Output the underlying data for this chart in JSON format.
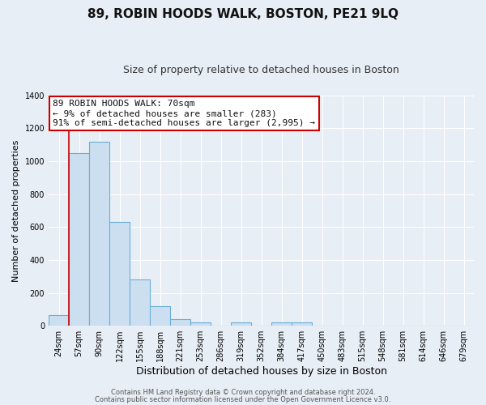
{
  "title": "89, ROBIN HOODS WALK, BOSTON, PE21 9LQ",
  "subtitle": "Size of property relative to detached houses in Boston",
  "xlabel": "Distribution of detached houses by size in Boston",
  "ylabel": "Number of detached properties",
  "bar_labels": [
    "24sqm",
    "57sqm",
    "90sqm",
    "122sqm",
    "155sqm",
    "188sqm",
    "221sqm",
    "253sqm",
    "286sqm",
    "319sqm",
    "352sqm",
    "384sqm",
    "417sqm",
    "450sqm",
    "483sqm",
    "515sqm",
    "548sqm",
    "581sqm",
    "614sqm",
    "646sqm",
    "679sqm"
  ],
  "bar_values": [
    65,
    1050,
    1120,
    630,
    280,
    120,
    40,
    20,
    0,
    20,
    0,
    20,
    20,
    0,
    0,
    0,
    0,
    0,
    0,
    0,
    0
  ],
  "bar_color": "#ccdff0",
  "bar_edge_color": "#6aaed6",
  "ylim": [
    0,
    1400
  ],
  "yticks": [
    0,
    200,
    400,
    600,
    800,
    1000,
    1200,
    1400
  ],
  "red_line_x": 1.0,
  "annotation_title": "89 ROBIN HOODS WALK: 70sqm",
  "annotation_line1": "← 9% of detached houses are smaller (283)",
  "annotation_line2": "91% of semi-detached houses are larger (2,995) →",
  "annotation_box_color": "#ffffff",
  "annotation_box_edge": "#cc0000",
  "footer1": "Contains HM Land Registry data © Crown copyright and database right 2024.",
  "footer2": "Contains public sector information licensed under the Open Government Licence v3.0.",
  "bg_color": "#e8eef5",
  "plot_bg_color": "#e8eef5",
  "grid_color": "#ffffff",
  "title_fontsize": 11,
  "subtitle_fontsize": 9,
  "xlabel_fontsize": 9,
  "ylabel_fontsize": 8,
  "tick_fontsize": 7,
  "footer_fontsize": 6,
  "ann_fontsize": 8
}
